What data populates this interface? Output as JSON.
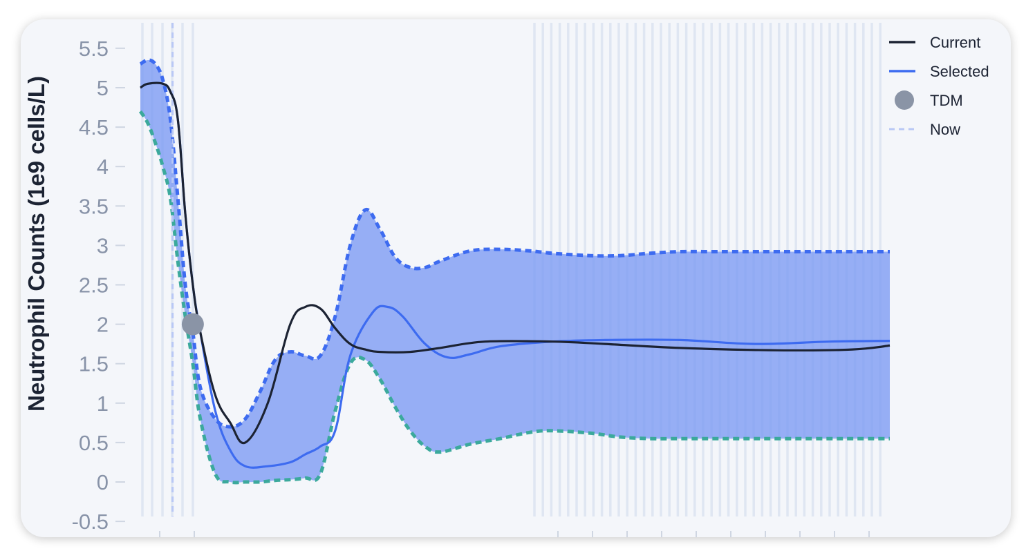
{
  "chart_data": {
    "type": "line",
    "ylabel": "Neutrophil Counts (1e9 cells/L)",
    "xlabel": "",
    "ylim": [
      -0.5,
      5.75
    ],
    "xlim": [
      0,
      100
    ],
    "yticks": [
      "-0.5",
      "0",
      "0.5",
      "1",
      "1.5",
      "2",
      "2.5",
      "3",
      "3.5",
      "4",
      "4.5",
      "5",
      "5.5"
    ],
    "ytick_values": [
      -0.5,
      0,
      0.5,
      1,
      1.5,
      2,
      2.5,
      3,
      3.5,
      4,
      4.5,
      5,
      5.5
    ],
    "grid": false,
    "legend_position": "top-right",
    "legend": [
      {
        "label": "Current",
        "kind": "line",
        "color": "#1c2333"
      },
      {
        "label": "Selected",
        "kind": "line",
        "color": "#3d6bf0"
      },
      {
        "label": "TDM",
        "kind": "marker",
        "color": "#8a94a6"
      },
      {
        "label": "Now",
        "kind": "dashed",
        "color": "#b9c8f5"
      }
    ],
    "colors": {
      "current": "#1c2333",
      "selected": "#3d6bf0",
      "band_fill": "#7b9af3",
      "band_upper": "#3d6bf0",
      "band_lower": "#3ba99c",
      "tdm": "#8a94a6",
      "now": "#b9c8f5",
      "dose_lines": "#dfe6f2"
    },
    "series": [
      {
        "name": "Current",
        "x": [
          0,
          1,
          3,
          4,
          5,
          6,
          7,
          8,
          10,
          12,
          14,
          17,
          20,
          22,
          24,
          26,
          28,
          30,
          32,
          36,
          40,
          46,
          55,
          62,
          72,
          85,
          95,
          100
        ],
        "y": [
          5.0,
          5.05,
          5.05,
          4.95,
          4.6,
          3.4,
          2.5,
          1.9,
          1.1,
          0.75,
          0.5,
          1.0,
          2.0,
          2.22,
          2.2,
          1.95,
          1.75,
          1.68,
          1.65,
          1.65,
          1.7,
          1.78,
          1.78,
          1.75,
          1.7,
          1.67,
          1.68,
          1.73
        ]
      },
      {
        "name": "Selected",
        "x": [
          0,
          1,
          3,
          4,
          5,
          6,
          7,
          8,
          10,
          12,
          14,
          17,
          20,
          22,
          24,
          26,
          28,
          31,
          33,
          35,
          38,
          41,
          44,
          48,
          55,
          62,
          72,
          82,
          92,
          100
        ],
        "y": [
          5.0,
          5.05,
          5.05,
          4.95,
          4.6,
          3.4,
          2.5,
          1.9,
          0.9,
          0.4,
          0.2,
          0.2,
          0.25,
          0.35,
          0.45,
          0.65,
          1.6,
          2.15,
          2.22,
          2.1,
          1.75,
          1.58,
          1.62,
          1.72,
          1.78,
          1.8,
          1.8,
          1.75,
          1.78,
          1.79
        ]
      }
    ],
    "band": {
      "x": [
        0,
        1,
        2,
        3,
        4,
        5,
        6,
        7,
        8,
        10,
        12,
        14,
        16,
        18,
        20,
        22,
        24,
        26,
        28,
        30,
        32,
        34,
        36,
        38,
        40,
        44,
        48,
        52,
        55,
        60,
        64,
        68,
        72,
        76,
        80,
        85,
        90,
        95,
        100
      ],
      "upper": [
        5.3,
        5.35,
        5.3,
        5.1,
        4.6,
        3.6,
        2.5,
        1.9,
        1.2,
        0.8,
        0.7,
        0.8,
        1.15,
        1.55,
        1.65,
        1.6,
        1.6,
        2.1,
        3.0,
        3.45,
        3.2,
        2.85,
        2.72,
        2.72,
        2.8,
        2.93,
        2.95,
        2.93,
        2.9,
        2.87,
        2.87,
        2.9,
        2.92,
        2.92,
        2.92,
        2.92,
        2.92,
        2.92,
        2.92
      ],
      "lower": [
        4.7,
        4.55,
        4.3,
        4.0,
        3.6,
        2.8,
        2.1,
        1.5,
        0.8,
        0.1,
        0.0,
        0.0,
        0.0,
        0.02,
        0.03,
        0.05,
        0.1,
        0.9,
        1.5,
        1.55,
        1.3,
        0.95,
        0.65,
        0.45,
        0.38,
        0.48,
        0.55,
        0.63,
        0.65,
        0.62,
        0.57,
        0.55,
        0.55,
        0.55,
        0.55,
        0.55,
        0.55,
        0.55,
        0.55
      ]
    },
    "tdm_points": [
      {
        "x": 7,
        "y": 2.0
      }
    ],
    "now_x": 4.3
  }
}
